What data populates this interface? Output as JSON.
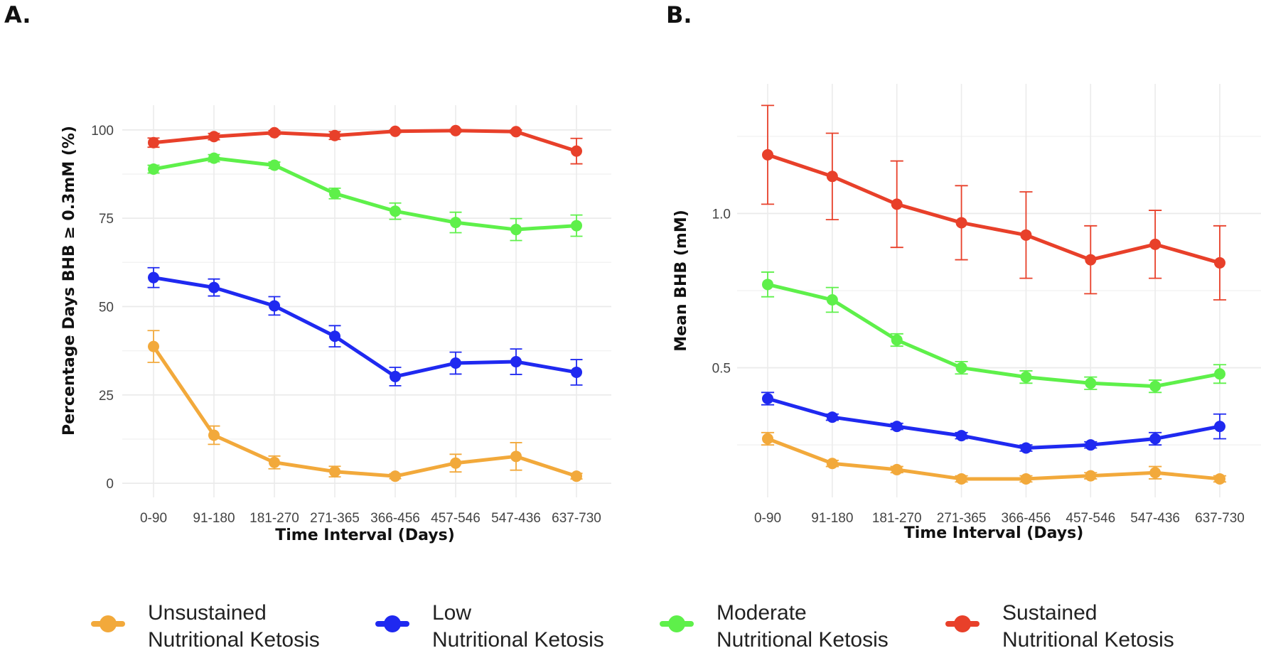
{
  "panels": {
    "a_label": "A.",
    "b_label": "B."
  },
  "legend": [
    {
      "line1": "Unsustained",
      "line2": "Nutritional Ketosis",
      "color": "#f2a93b"
    },
    {
      "line1": "Low",
      "line2": "Nutritional Ketosis",
      "color": "#1f29f0"
    },
    {
      "line1": "Moderate",
      "line2": "Nutritional Ketosis",
      "color": "#5ef04a"
    },
    {
      "line1": "Sustained",
      "line2": "Nutritional Ketosis",
      "color": "#e8402a"
    }
  ],
  "chart_data": [
    {
      "type": "line",
      "panel": "A.",
      "title": "",
      "xlabel": "Time Interval (Days)",
      "ylabel": "Percentage Days BHB ≥ 0.3mM (%)",
      "categories": [
        "0-90",
        "91-180",
        "181-270",
        "271-365",
        "366-456",
        "457-546",
        "547-436",
        "637-730"
      ],
      "ylim": [
        -4,
        107
      ],
      "yticks": [
        0,
        25,
        50,
        75,
        100
      ],
      "ytick_labels": [
        "0",
        "25",
        "50",
        "75",
        "100"
      ],
      "grid": true,
      "series": [
        {
          "name": "Unsustained Nutritional Ketosis",
          "color": "#f2a93b",
          "values": [
            38.7,
            13.6,
            5.9,
            3.3,
            2.0,
            5.7,
            7.6,
            2.0
          ],
          "err": [
            4.5,
            2.6,
            1.8,
            1.5,
            0.7,
            2.5,
            3.9,
            0.8
          ]
        },
        {
          "name": "Low Nutritional Ketosis",
          "color": "#1f29f0",
          "values": [
            58.2,
            55.4,
            50.2,
            41.6,
            30.2,
            34.0,
            34.4,
            31.4
          ],
          "err": [
            2.8,
            2.4,
            2.6,
            3.0,
            2.6,
            3.1,
            3.6,
            3.6
          ]
        },
        {
          "name": "Moderate Nutritional Ketosis",
          "color": "#5ef04a",
          "values": [
            88.9,
            92.0,
            90.0,
            82.0,
            77.0,
            73.8,
            71.8,
            72.9
          ],
          "err": [
            1.1,
            1.0,
            0.9,
            1.5,
            2.3,
            2.9,
            3.1,
            3.0
          ]
        },
        {
          "name": "Sustained Nutritional Ketosis",
          "color": "#e8402a",
          "values": [
            96.4,
            98.1,
            99.2,
            98.4,
            99.6,
            99.8,
            99.5,
            94.0
          ],
          "err": [
            1.3,
            0.9,
            0.6,
            1.1,
            0.4,
            0.4,
            0.5,
            3.6
          ]
        }
      ]
    },
    {
      "type": "line",
      "panel": "B.",
      "title": "",
      "xlabel": "Time Interval (Days)",
      "ylabel": "Mean BHB (mM)",
      "categories": [
        "0-90",
        "91-180",
        "181-270",
        "271-365",
        "366-456",
        "457-546",
        "547-436",
        "637-730"
      ],
      "ylim": [
        0.08,
        1.42
      ],
      "yticks": [
        0.5,
        1.0
      ],
      "ytick_labels": [
        "0.5",
        "1.0"
      ],
      "grid": true,
      "series": [
        {
          "name": "Unsustained Nutritional Ketosis",
          "color": "#f2a93b",
          "values": [
            0.27,
            0.19,
            0.17,
            0.14,
            0.14,
            0.15,
            0.16,
            0.14
          ],
          "err": [
            0.02,
            0.01,
            0.01,
            0.01,
            0.01,
            0.01,
            0.02,
            0.01
          ]
        },
        {
          "name": "Low Nutritional Ketosis",
          "color": "#1f29f0",
          "values": [
            0.4,
            0.34,
            0.31,
            0.28,
            0.24,
            0.25,
            0.27,
            0.31
          ],
          "err": [
            0.02,
            0.01,
            0.01,
            0.01,
            0.01,
            0.01,
            0.02,
            0.04
          ]
        },
        {
          "name": "Moderate Nutritional Ketosis",
          "color": "#5ef04a",
          "values": [
            0.77,
            0.72,
            0.59,
            0.5,
            0.47,
            0.45,
            0.44,
            0.48
          ],
          "err": [
            0.04,
            0.04,
            0.02,
            0.02,
            0.02,
            0.02,
            0.02,
            0.03
          ]
        },
        {
          "name": "Sustained Nutritional Ketosis",
          "color": "#e8402a",
          "values": [
            1.19,
            1.12,
            1.03,
            0.97,
            0.93,
            0.85,
            0.9,
            0.84
          ],
          "err": [
            0.16,
            0.14,
            0.14,
            0.12,
            0.14,
            0.11,
            0.11,
            0.12
          ]
        }
      ]
    }
  ]
}
